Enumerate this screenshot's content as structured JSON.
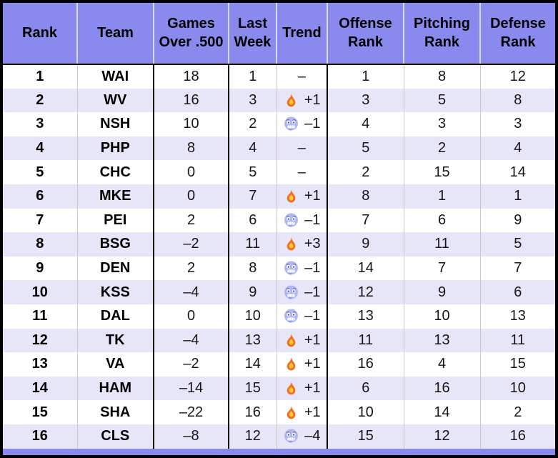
{
  "colors": {
    "header_bg": "#8A8AEE",
    "row_alt_bg": "#E6E6F8",
    "row_bg": "#FFFFFF",
    "outer_border": "#000000",
    "light_grid": "#C9C9C9",
    "header_divider": "#DADAF8",
    "fire_orange": "#F0701E",
    "fire_yellow": "#FFC83D",
    "cold_face_blue": "#AEB8F4"
  },
  "chart_data": {
    "type": "table",
    "columns": [
      "Rank",
      "Team",
      "Games Over .500",
      "Last Week",
      "Trend",
      "Offense Rank",
      "Pitching Rank",
      "Defense Rank"
    ],
    "rows": [
      {
        "rank": 1,
        "team": "WAI",
        "games_over_500": 18,
        "last_week": 1,
        "trend_icon": "none",
        "trend_text": "–",
        "offense_rank": 1,
        "pitching_rank": 8,
        "defense_rank": 12
      },
      {
        "rank": 2,
        "team": "WV",
        "games_over_500": 16,
        "last_week": 3,
        "trend_icon": "fire",
        "trend_text": "+1",
        "offense_rank": 3,
        "pitching_rank": 5,
        "defense_rank": 8
      },
      {
        "rank": 3,
        "team": "NSH",
        "games_over_500": 10,
        "last_week": 2,
        "trend_icon": "cold",
        "trend_text": "–1",
        "offense_rank": 4,
        "pitching_rank": 3,
        "defense_rank": 3
      },
      {
        "rank": 4,
        "team": "PHP",
        "games_over_500": 8,
        "last_week": 4,
        "trend_icon": "none",
        "trend_text": "–",
        "offense_rank": 5,
        "pitching_rank": 2,
        "defense_rank": 4
      },
      {
        "rank": 5,
        "team": "CHC",
        "games_over_500": 0,
        "last_week": 5,
        "trend_icon": "none",
        "trend_text": "–",
        "offense_rank": 2,
        "pitching_rank": 15,
        "defense_rank": 14
      },
      {
        "rank": 6,
        "team": "MKE",
        "games_over_500": 0,
        "last_week": 7,
        "trend_icon": "fire",
        "trend_text": "+1",
        "offense_rank": 8,
        "pitching_rank": 1,
        "defense_rank": 1
      },
      {
        "rank": 7,
        "team": "PEI",
        "games_over_500": 2,
        "last_week": 6,
        "trend_icon": "cold",
        "trend_text": "–1",
        "offense_rank": 7,
        "pitching_rank": 6,
        "defense_rank": 9
      },
      {
        "rank": 8,
        "team": "BSG",
        "games_over_500": -2,
        "last_week": 11,
        "trend_icon": "fire",
        "trend_text": "+3",
        "offense_rank": 9,
        "pitching_rank": 11,
        "defense_rank": 5
      },
      {
        "rank": 9,
        "team": "DEN",
        "games_over_500": 2,
        "last_week": 8,
        "trend_icon": "cold",
        "trend_text": "–1",
        "offense_rank": 14,
        "pitching_rank": 7,
        "defense_rank": 7
      },
      {
        "rank": 10,
        "team": "KSS",
        "games_over_500": -4,
        "last_week": 9,
        "trend_icon": "cold",
        "trend_text": "–1",
        "offense_rank": 12,
        "pitching_rank": 9,
        "defense_rank": 6
      },
      {
        "rank": 11,
        "team": "DAL",
        "games_over_500": 0,
        "last_week": 10,
        "trend_icon": "cold",
        "trend_text": "–1",
        "offense_rank": 13,
        "pitching_rank": 10,
        "defense_rank": 13
      },
      {
        "rank": 12,
        "team": "TK",
        "games_over_500": -4,
        "last_week": 13,
        "trend_icon": "fire",
        "trend_text": "+1",
        "offense_rank": 11,
        "pitching_rank": 13,
        "defense_rank": 11
      },
      {
        "rank": 13,
        "team": "VA",
        "games_over_500": -2,
        "last_week": 14,
        "trend_icon": "fire",
        "trend_text": "+1",
        "offense_rank": 16,
        "pitching_rank": 4,
        "defense_rank": 15
      },
      {
        "rank": 14,
        "team": "HAM",
        "games_over_500": -14,
        "last_week": 15,
        "trend_icon": "fire",
        "trend_text": "+1",
        "offense_rank": 6,
        "pitching_rank": 16,
        "defense_rank": 10
      },
      {
        "rank": 15,
        "team": "SHA",
        "games_over_500": -22,
        "last_week": 16,
        "trend_icon": "fire",
        "trend_text": "+1",
        "offense_rank": 10,
        "pitching_rank": 14,
        "defense_rank": 2
      },
      {
        "rank": 16,
        "team": "CLS",
        "games_over_500": -8,
        "last_week": 12,
        "trend_icon": "cold",
        "trend_text": "–4",
        "offense_rank": 15,
        "pitching_rank": 12,
        "defense_rank": 16
      }
    ]
  }
}
